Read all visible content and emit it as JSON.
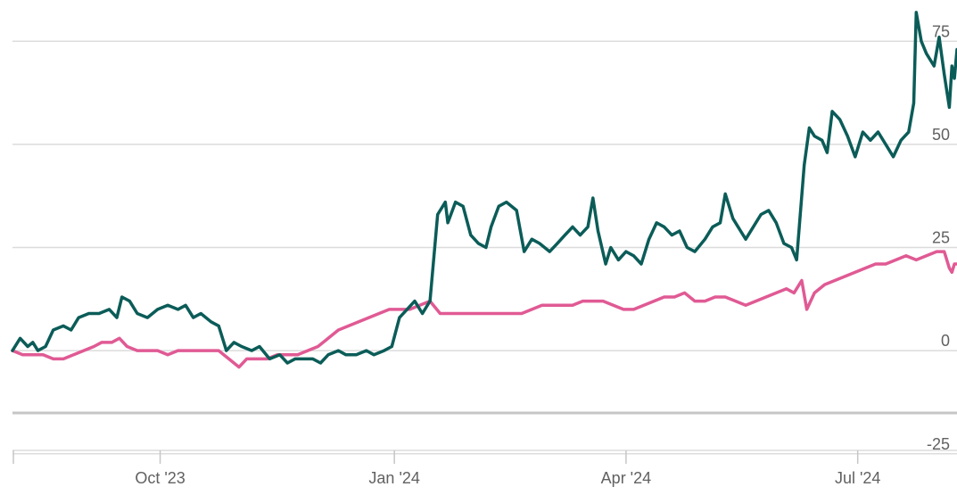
{
  "chart_data": {
    "type": "line",
    "title": "",
    "xlabel": "",
    "ylabel": "",
    "ylim": [
      -35,
      85
    ],
    "xlim": [
      "2023-08-04",
      "2024-08-09"
    ],
    "y_ticks": [
      -25,
      0,
      25,
      50,
      75
    ],
    "y_tick_labels": [
      "-25",
      "0",
      "25",
      "50",
      "75"
    ],
    "x_ticks": [
      "2023-10-01",
      "2024-01-01",
      "2024-04-01",
      "2024-07-01"
    ],
    "x_tick_labels": [
      "Oct '23",
      "Jan '24",
      "Apr '24",
      "Jul '24"
    ],
    "grid": true,
    "legend": "none",
    "series": [
      {
        "color": "#0b5c58",
        "points": [
          [
            "2023-08-04",
            0
          ],
          [
            "2023-08-07",
            3
          ],
          [
            "2023-08-10",
            1
          ],
          [
            "2023-08-12",
            2
          ],
          [
            "2023-08-14",
            0
          ],
          [
            "2023-08-17",
            1
          ],
          [
            "2023-08-20",
            5
          ],
          [
            "2023-08-24",
            6
          ],
          [
            "2023-08-27",
            5
          ],
          [
            "2023-08-30",
            8
          ],
          [
            "2023-09-03",
            9
          ],
          [
            "2023-09-07",
            9
          ],
          [
            "2023-09-11",
            10
          ],
          [
            "2023-09-14",
            8
          ],
          [
            "2023-09-16",
            13
          ],
          [
            "2023-09-19",
            12
          ],
          [
            "2023-09-22",
            9
          ],
          [
            "2023-09-26",
            8
          ],
          [
            "2023-09-30",
            10
          ],
          [
            "2023-10-04",
            11
          ],
          [
            "2023-10-08",
            10
          ],
          [
            "2023-10-11",
            11
          ],
          [
            "2023-10-14",
            8
          ],
          [
            "2023-10-17",
            9
          ],
          [
            "2023-10-21",
            7
          ],
          [
            "2023-10-24",
            6
          ],
          [
            "2023-10-27",
            0
          ],
          [
            "2023-10-30",
            2
          ],
          [
            "2023-11-02",
            1
          ],
          [
            "2023-11-06",
            0
          ],
          [
            "2023-11-09",
            1
          ],
          [
            "2023-11-13",
            -2
          ],
          [
            "2023-11-17",
            -1
          ],
          [
            "2023-11-20",
            -3
          ],
          [
            "2023-11-23",
            -2
          ],
          [
            "2023-11-27",
            -2
          ],
          [
            "2023-11-30",
            -2
          ],
          [
            "2023-12-03",
            -3
          ],
          [
            "2023-12-06",
            -1
          ],
          [
            "2023-12-10",
            0
          ],
          [
            "2023-12-13",
            -1
          ],
          [
            "2023-12-17",
            -1
          ],
          [
            "2023-12-21",
            0
          ],
          [
            "2023-12-24",
            -1
          ],
          [
            "2023-12-28",
            0
          ],
          [
            "2023-12-31",
            1
          ],
          [
            "2024-01-03",
            8
          ],
          [
            "2024-01-06",
            10
          ],
          [
            "2024-01-09",
            12
          ],
          [
            "2024-01-12",
            9
          ],
          [
            "2024-01-15",
            12
          ],
          [
            "2024-01-18",
            33
          ],
          [
            "2024-01-21",
            36
          ],
          [
            "2024-01-22",
            31
          ],
          [
            "2024-01-25",
            36
          ],
          [
            "2024-01-28",
            35
          ],
          [
            "2024-01-31",
            28
          ],
          [
            "2024-02-03",
            26
          ],
          [
            "2024-02-06",
            25
          ],
          [
            "2024-02-08",
            30
          ],
          [
            "2024-02-11",
            35
          ],
          [
            "2024-02-14",
            36
          ],
          [
            "2024-02-18",
            34
          ],
          [
            "2024-02-21",
            24
          ],
          [
            "2024-02-24",
            27
          ],
          [
            "2024-02-27",
            26
          ],
          [
            "2024-03-02",
            24
          ],
          [
            "2024-03-05",
            26
          ],
          [
            "2024-03-08",
            28
          ],
          [
            "2024-03-11",
            30
          ],
          [
            "2024-03-14",
            28
          ],
          [
            "2024-03-17",
            30
          ],
          [
            "2024-03-19",
            37
          ],
          [
            "2024-03-21",
            29
          ],
          [
            "2024-03-24",
            21
          ],
          [
            "2024-03-26",
            25
          ],
          [
            "2024-03-29",
            22
          ],
          [
            "2024-04-01",
            24
          ],
          [
            "2024-04-04",
            23
          ],
          [
            "2024-04-07",
            21
          ],
          [
            "2024-04-10",
            27
          ],
          [
            "2024-04-13",
            31
          ],
          [
            "2024-04-16",
            30
          ],
          [
            "2024-04-19",
            28
          ],
          [
            "2024-04-22",
            29
          ],
          [
            "2024-04-25",
            25
          ],
          [
            "2024-04-28",
            24
          ],
          [
            "2024-05-02",
            27
          ],
          [
            "2024-05-05",
            30
          ],
          [
            "2024-05-08",
            31
          ],
          [
            "2024-05-10",
            38
          ],
          [
            "2024-05-13",
            32
          ],
          [
            "2024-05-16",
            29
          ],
          [
            "2024-05-18",
            27
          ],
          [
            "2024-05-21",
            30
          ],
          [
            "2024-05-24",
            33
          ],
          [
            "2024-05-27",
            34
          ],
          [
            "2024-05-30",
            31
          ],
          [
            "2024-06-02",
            26
          ],
          [
            "2024-06-05",
            25
          ],
          [
            "2024-06-07",
            22
          ],
          [
            "2024-06-10",
            45
          ],
          [
            "2024-06-12",
            54
          ],
          [
            "2024-06-14",
            52
          ],
          [
            "2024-06-17",
            51
          ],
          [
            "2024-06-19",
            48
          ],
          [
            "2024-06-21",
            58
          ],
          [
            "2024-06-24",
            56
          ],
          [
            "2024-06-27",
            52
          ],
          [
            "2024-06-30",
            47
          ],
          [
            "2024-07-03",
            53
          ],
          [
            "2024-07-06",
            51
          ],
          [
            "2024-07-09",
            53
          ],
          [
            "2024-07-12",
            50
          ],
          [
            "2024-07-15",
            47
          ],
          [
            "2024-07-18",
            51
          ],
          [
            "2024-07-21",
            53
          ],
          [
            "2024-07-23",
            60
          ],
          [
            "2024-07-24",
            82
          ],
          [
            "2024-07-26",
            75
          ],
          [
            "2024-07-28",
            72
          ],
          [
            "2024-07-31",
            69
          ],
          [
            "2024-08-02",
            76
          ],
          [
            "2024-08-04",
            67
          ],
          [
            "2024-08-06",
            59
          ],
          [
            "2024-08-07",
            69
          ],
          [
            "2024-08-08",
            66
          ],
          [
            "2024-08-09",
            73
          ]
        ]
      },
      {
        "color": "#e05a94",
        "points": [
          [
            "2023-08-04",
            0
          ],
          [
            "2023-08-08",
            -1
          ],
          [
            "2023-08-12",
            -1
          ],
          [
            "2023-08-16",
            -1
          ],
          [
            "2023-08-20",
            -2
          ],
          [
            "2023-08-24",
            -2
          ],
          [
            "2023-08-28",
            -1
          ],
          [
            "2023-09-01",
            0
          ],
          [
            "2023-09-05",
            1
          ],
          [
            "2023-09-08",
            2
          ],
          [
            "2023-09-12",
            2
          ],
          [
            "2023-09-15",
            3
          ],
          [
            "2023-09-18",
            1
          ],
          [
            "2023-09-22",
            0
          ],
          [
            "2023-09-26",
            0
          ],
          [
            "2023-09-30",
            0
          ],
          [
            "2023-10-04",
            -1
          ],
          [
            "2023-10-08",
            0
          ],
          [
            "2023-10-12",
            0
          ],
          [
            "2023-10-16",
            0
          ],
          [
            "2023-10-20",
            0
          ],
          [
            "2023-10-24",
            0
          ],
          [
            "2023-10-28",
            -2
          ],
          [
            "2023-11-01",
            -4
          ],
          [
            "2023-11-04",
            -2
          ],
          [
            "2023-11-08",
            -2
          ],
          [
            "2023-11-12",
            -2
          ],
          [
            "2023-11-16",
            -1
          ],
          [
            "2023-11-20",
            -1
          ],
          [
            "2023-11-24",
            -1
          ],
          [
            "2023-11-28",
            0
          ],
          [
            "2023-12-02",
            1
          ],
          [
            "2023-12-06",
            3
          ],
          [
            "2023-12-10",
            5
          ],
          [
            "2023-12-14",
            6
          ],
          [
            "2023-12-18",
            7
          ],
          [
            "2023-12-22",
            8
          ],
          [
            "2023-12-26",
            9
          ],
          [
            "2023-12-30",
            10
          ],
          [
            "2024-01-03",
            10
          ],
          [
            "2024-01-07",
            10
          ],
          [
            "2024-01-11",
            11
          ],
          [
            "2024-01-15",
            12
          ],
          [
            "2024-01-19",
            9
          ],
          [
            "2024-01-23",
            9
          ],
          [
            "2024-01-27",
            9
          ],
          [
            "2024-01-31",
            9
          ],
          [
            "2024-02-04",
            9
          ],
          [
            "2024-02-08",
            9
          ],
          [
            "2024-02-12",
            9
          ],
          [
            "2024-02-16",
            9
          ],
          [
            "2024-02-20",
            9
          ],
          [
            "2024-02-24",
            10
          ],
          [
            "2024-02-28",
            11
          ],
          [
            "2024-03-03",
            11
          ],
          [
            "2024-03-07",
            11
          ],
          [
            "2024-03-11",
            11
          ],
          [
            "2024-03-15",
            12
          ],
          [
            "2024-03-19",
            12
          ],
          [
            "2024-03-23",
            12
          ],
          [
            "2024-03-27",
            11
          ],
          [
            "2024-03-31",
            10
          ],
          [
            "2024-04-04",
            10
          ],
          [
            "2024-04-08",
            11
          ],
          [
            "2024-04-12",
            12
          ],
          [
            "2024-04-16",
            13
          ],
          [
            "2024-04-20",
            13
          ],
          [
            "2024-04-24",
            14
          ],
          [
            "2024-04-28",
            12
          ],
          [
            "2024-05-02",
            12
          ],
          [
            "2024-05-06",
            13
          ],
          [
            "2024-05-10",
            13
          ],
          [
            "2024-05-14",
            12
          ],
          [
            "2024-05-18",
            11
          ],
          [
            "2024-05-22",
            12
          ],
          [
            "2024-05-26",
            13
          ],
          [
            "2024-05-30",
            14
          ],
          [
            "2024-06-03",
            15
          ],
          [
            "2024-06-06",
            14
          ],
          [
            "2024-06-09",
            17
          ],
          [
            "2024-06-11",
            10
          ],
          [
            "2024-06-14",
            14
          ],
          [
            "2024-06-18",
            16
          ],
          [
            "2024-06-22",
            17
          ],
          [
            "2024-06-26",
            18
          ],
          [
            "2024-06-30",
            19
          ],
          [
            "2024-07-04",
            20
          ],
          [
            "2024-07-08",
            21
          ],
          [
            "2024-07-12",
            21
          ],
          [
            "2024-07-16",
            22
          ],
          [
            "2024-07-20",
            23
          ],
          [
            "2024-07-24",
            22
          ],
          [
            "2024-07-28",
            23
          ],
          [
            "2024-08-01",
            24
          ],
          [
            "2024-08-04",
            24
          ],
          [
            "2024-08-06",
            20
          ],
          [
            "2024-08-07",
            19
          ],
          [
            "2024-08-08",
            21
          ],
          [
            "2024-08-09",
            21
          ]
        ]
      }
    ]
  }
}
